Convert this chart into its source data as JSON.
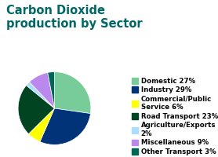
{
  "title": "Carbon Dioxide\nproduction by Sector",
  "title_color": "#006666",
  "title_fontsize": 10.5,
  "background_color": "#ffffff",
  "slices": [
    27,
    29,
    6,
    23,
    2,
    9,
    3
  ],
  "colors": [
    "#77cc99",
    "#003377",
    "#ffff00",
    "#004422",
    "#aaddff",
    "#bb88ee",
    "#006655"
  ],
  "labels": [
    "Domestic 27%",
    "Industry 29%",
    "Commercial/Public\nService 6%",
    "Road Transport 23%",
    "Agriculture/Exports\n2%",
    "Miscellaneous 9%",
    "Other Transport 3%"
  ],
  "legend_fontsize": 6.2,
  "startangle": 90
}
